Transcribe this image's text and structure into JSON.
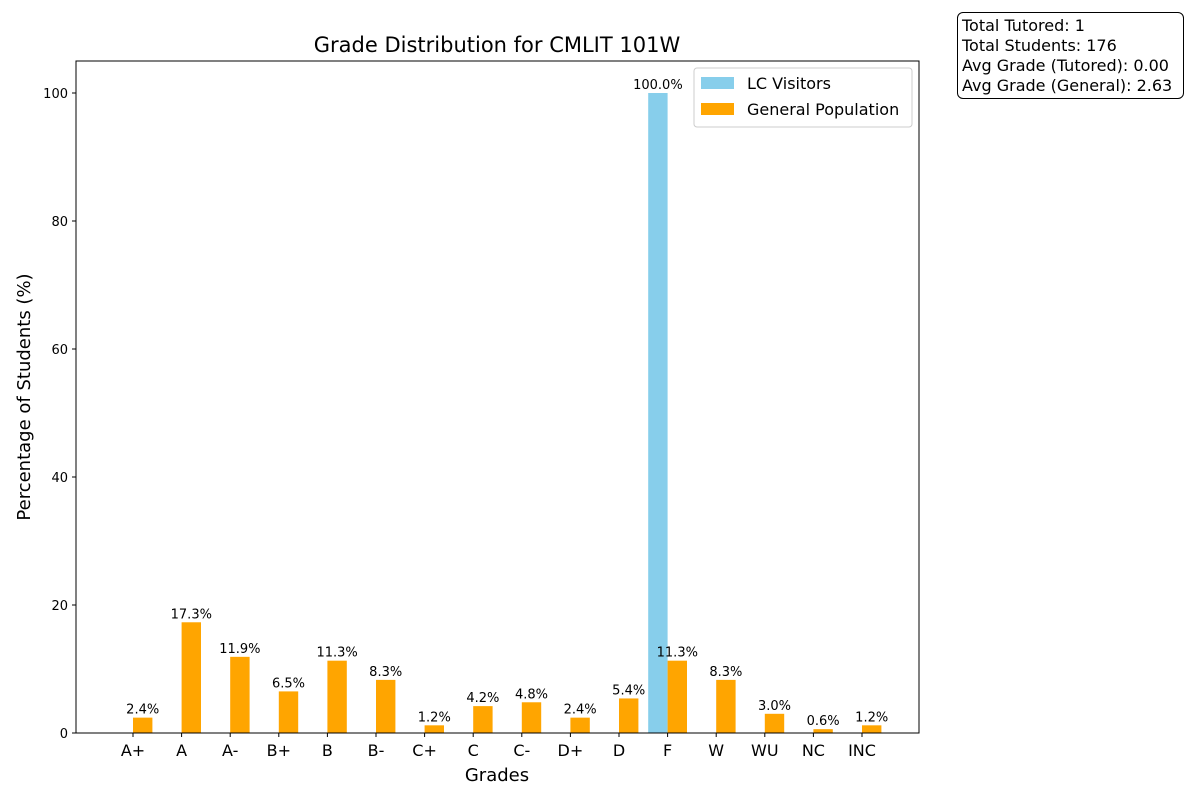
{
  "chart_data": {
    "type": "bar",
    "title": "Grade Distribution for CMLIT 101W",
    "xlabel": "Grades",
    "ylabel": "Percentage of Students (%)",
    "ylim": [
      0,
      105
    ],
    "yticks": [
      0,
      20,
      40,
      60,
      80,
      100
    ],
    "legend_position": "top-right",
    "categories": [
      "A+",
      "A",
      "A-",
      "B+",
      "B",
      "B-",
      "C+",
      "C",
      "C-",
      "D+",
      "D",
      "F",
      "W",
      "WU",
      "NC",
      "INC"
    ],
    "series": [
      {
        "name": "LC Visitors",
        "color": "#87CEEB",
        "values": [
          0,
          0,
          0,
          0,
          0,
          0,
          0,
          0,
          0,
          0,
          0,
          100.0,
          0,
          0,
          0,
          0
        ],
        "labels": [
          "",
          "",
          "",
          "",
          "",
          "",
          "",
          "",
          "",
          "",
          "",
          "100.0%",
          "",
          "",
          "",
          ""
        ]
      },
      {
        "name": "General Population",
        "color": "#FFA500",
        "values": [
          2.4,
          17.3,
          11.9,
          6.5,
          11.3,
          8.3,
          1.2,
          4.2,
          4.8,
          2.4,
          5.4,
          11.3,
          8.3,
          3.0,
          0.6,
          1.2
        ],
        "labels": [
          "2.4%",
          "17.3%",
          "11.9%",
          "6.5%",
          "11.3%",
          "8.3%",
          "1.2%",
          "4.2%",
          "4.8%",
          "2.4%",
          "5.4%",
          "11.3%",
          "8.3%",
          "3.0%",
          "0.6%",
          "1.2%"
        ]
      }
    ]
  },
  "stats": {
    "total_tutored": "Total Tutored: 1",
    "total_students": "Total Students: 176",
    "avg_tutored": "Avg Grade (Tutored): 0.00",
    "avg_general": "Avg Grade (General): 2.63"
  }
}
